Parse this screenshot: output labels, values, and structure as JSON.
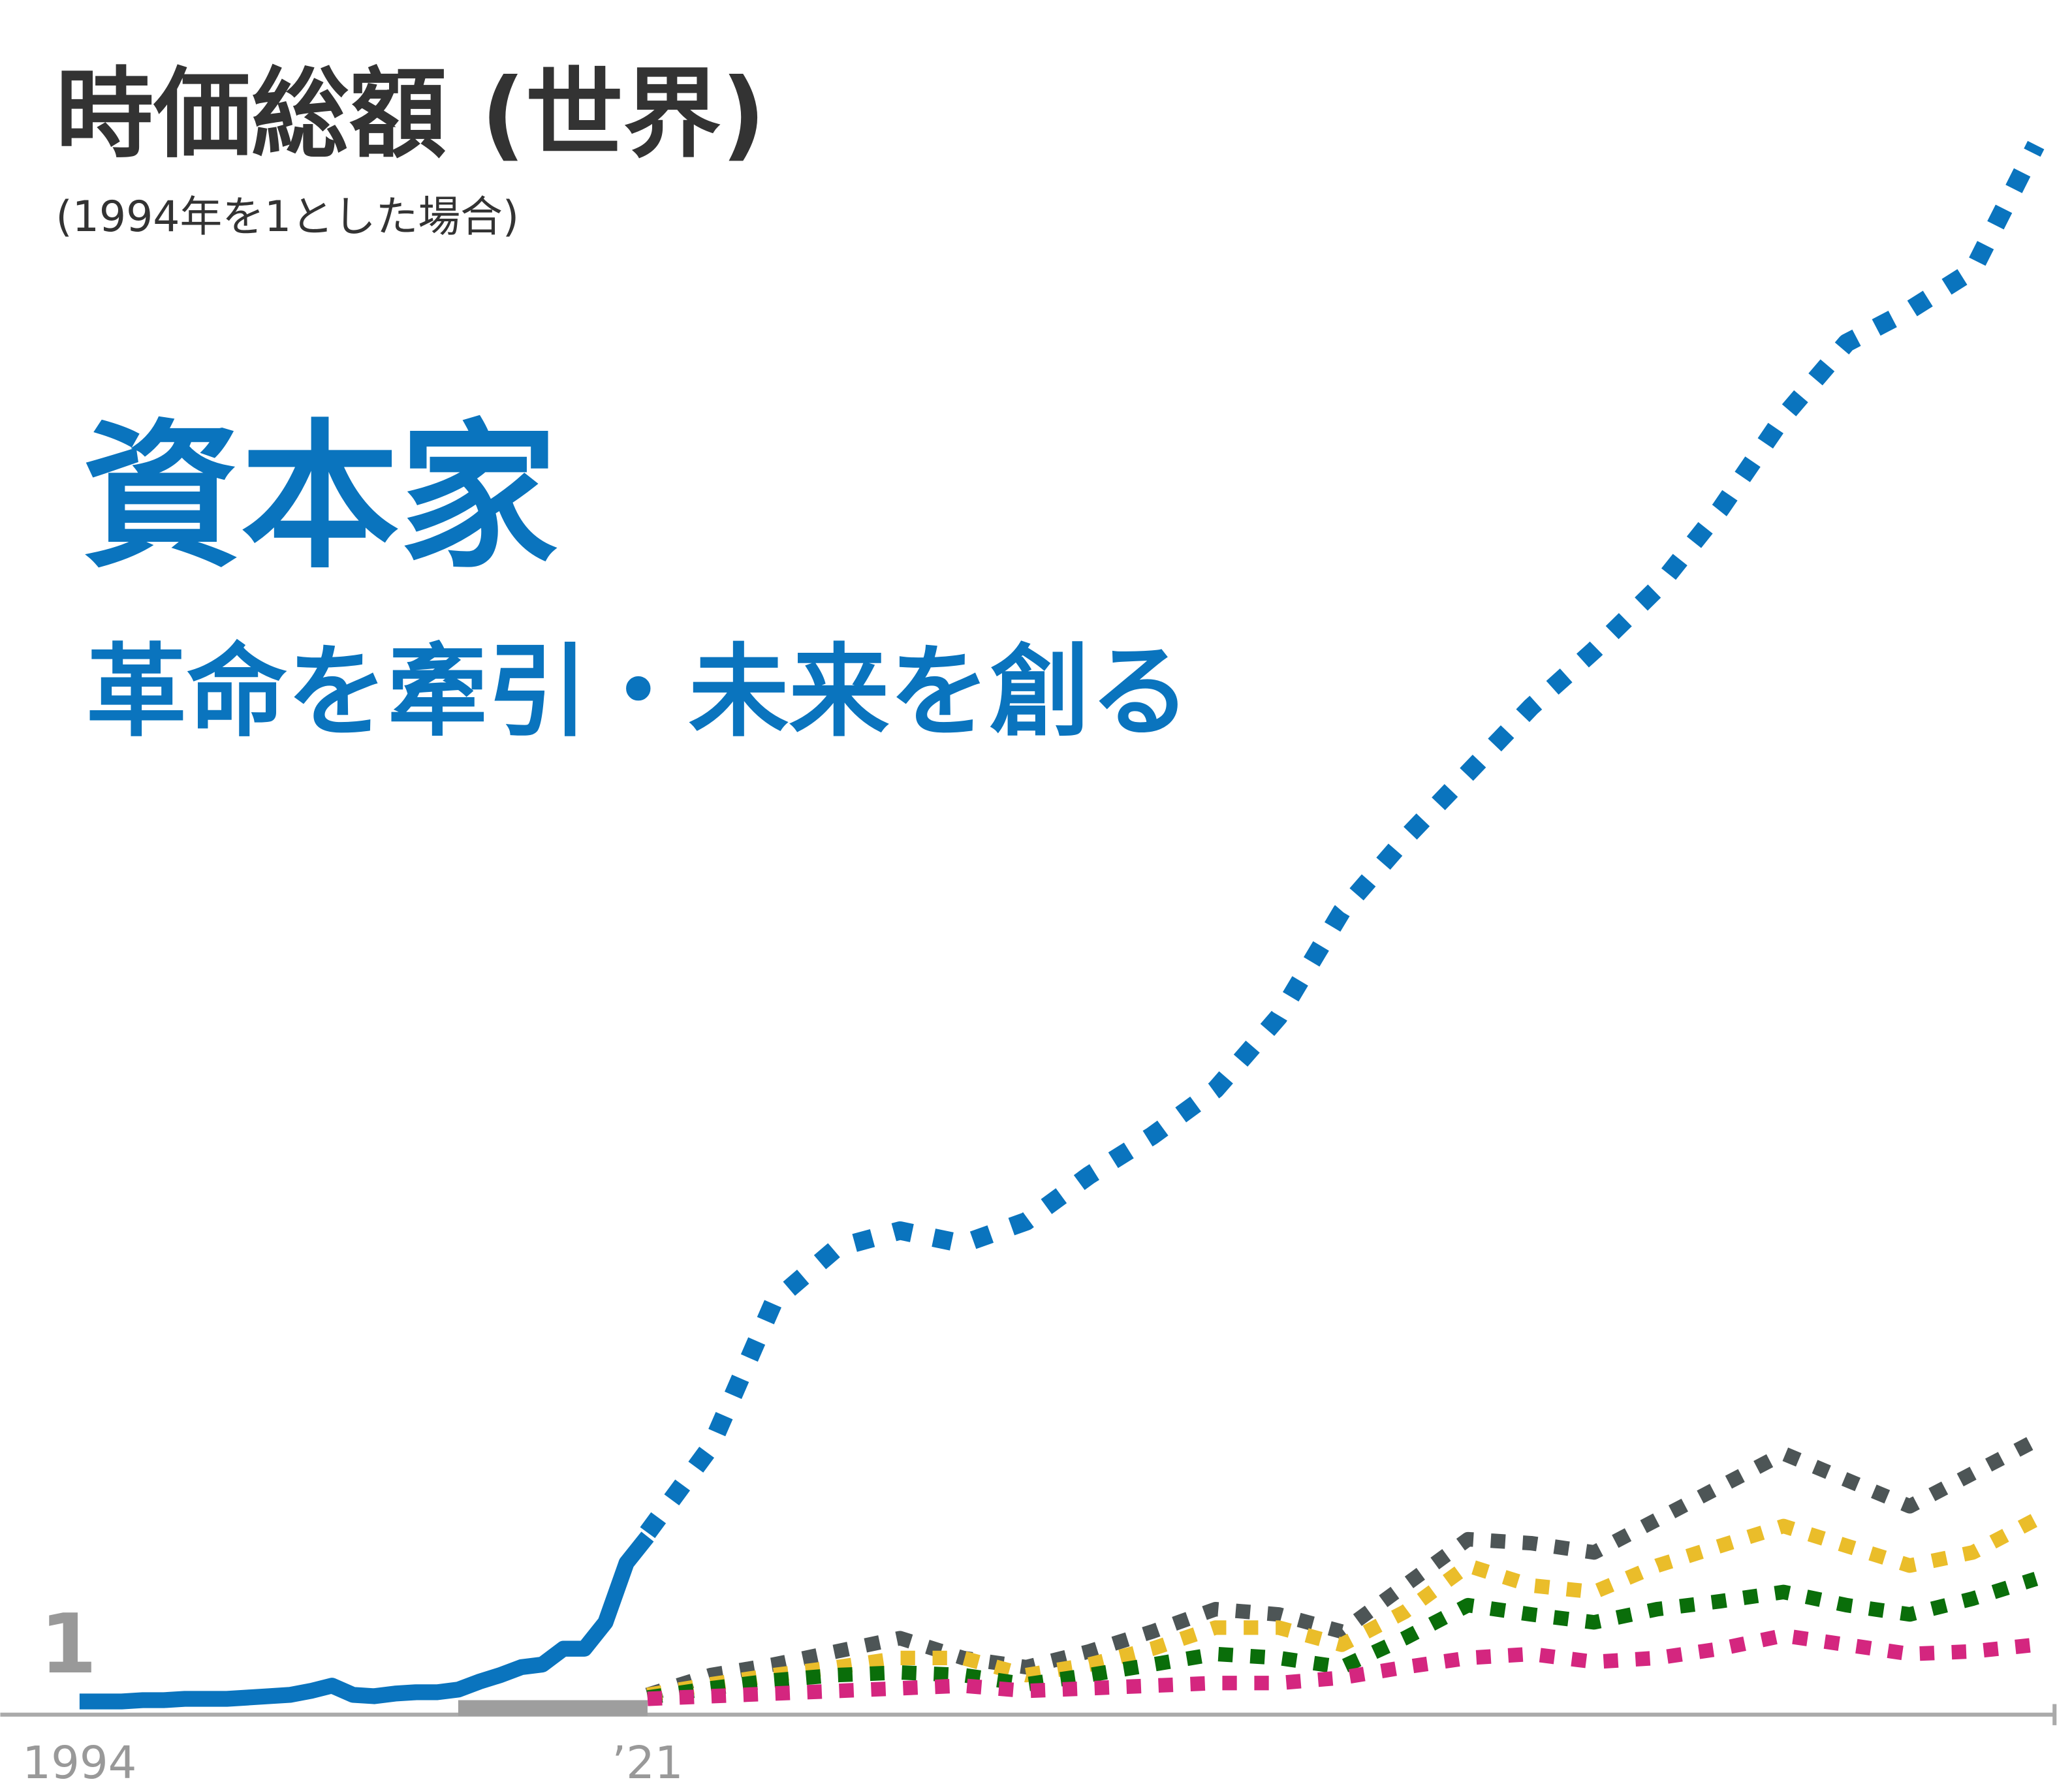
{
  "chart_data": {
    "type": "line",
    "title": "時価総額 (世界)",
    "subtitle": "(1994年を1とした場合)",
    "annotations": [
      "資本家",
      "革命を牽引・未来を創る"
    ],
    "x": [
      1994,
      1995,
      1996,
      1997,
      1998,
      1999,
      2000,
      2001,
      2002,
      2003,
      2004,
      2005,
      2006,
      2007,
      2008,
      2009,
      2010,
      2011,
      2012,
      2013,
      2014,
      2015,
      2016,
      2017,
      2018,
      2019,
      2020,
      2021,
      2024,
      2027,
      2030,
      2033,
      2036,
      2039,
      2042,
      2045,
      2048,
      2051,
      2054,
      2057,
      2060,
      2063,
      2066,
      2069,
      2072,
      2075,
      2078,
      2081,
      2084,
      2087
    ],
    "series": [
      {
        "color": "#9e9e9e",
        "dashed": false,
        "width": 12,
        "values": [
          null,
          null,
          null,
          null,
          null,
          null,
          null,
          null,
          null,
          null,
          null,
          null,
          null,
          null,
          null,
          null,
          null,
          null,
          0.5,
          0.5,
          0.5,
          0.5,
          0.5,
          0.5,
          0.5,
          0.5,
          0.5,
          0.5,
          null,
          null,
          null,
          null,
          null,
          null,
          null,
          null,
          null,
          null,
          null,
          null,
          null,
          null,
          null,
          null,
          null,
          null,
          null,
          null,
          null,
          null
        ]
      },
      {
        "color": "#4d5556",
        "dashed": true,
        "width": 11,
        "values": [
          null,
          null,
          null,
          null,
          null,
          null,
          null,
          null,
          null,
          null,
          null,
          null,
          null,
          null,
          null,
          null,
          null,
          null,
          null,
          null,
          null,
          null,
          null,
          null,
          null,
          null,
          null,
          1.5,
          3.0,
          3.8,
          4.8,
          5.8,
          4.3,
          3.6,
          4.8,
          6.3,
          8.0,
          7.6,
          6.3,
          9.8,
          13.3,
          13.0,
          12.3,
          14.8,
          17.3,
          19.8,
          17.8,
          15.8,
          18.3,
          20.8
        ]
      },
      {
        "color": "#eabd2a",
        "dashed": true,
        "width": 11,
        "values": [
          null,
          null,
          null,
          null,
          null,
          null,
          null,
          null,
          null,
          null,
          null,
          null,
          null,
          null,
          null,
          null,
          null,
          null,
          null,
          null,
          null,
          null,
          null,
          null,
          null,
          null,
          null,
          1.5,
          2.3,
          3.0,
          3.6,
          4.3,
          4.3,
          3.0,
          3.8,
          5.0,
          6.6,
          6.6,
          5.3,
          7.8,
          11.3,
          9.8,
          9.3,
          11.3,
          12.8,
          14.3,
          12.8,
          11.3,
          12.3,
          14.8
        ]
      },
      {
        "color": "#0a6e0a",
        "dashed": true,
        "width": 11,
        "values": [
          null,
          null,
          null,
          null,
          null,
          null,
          null,
          null,
          null,
          null,
          null,
          null,
          null,
          null,
          null,
          null,
          null,
          null,
          null,
          null,
          null,
          null,
          null,
          null,
          null,
          null,
          null,
          1.3,
          2.0,
          2.6,
          3.0,
          3.2,
          3.0,
          2.3,
          3.0,
          3.8,
          4.6,
          4.3,
          3.6,
          5.8,
          8.3,
          7.6,
          7.0,
          8.0,
          8.6,
          9.3,
          8.3,
          7.6,
          8.8,
          10.3
        ]
      },
      {
        "color": "#d4267f",
        "dashed": true,
        "width": 11,
        "values": [
          null,
          null,
          null,
          null,
          null,
          null,
          null,
          null,
          null,
          null,
          null,
          null,
          null,
          null,
          null,
          null,
          null,
          null,
          null,
          null,
          null,
          null,
          null,
          null,
          null,
          null,
          null,
          1.2,
          1.4,
          1.6,
          1.8,
          2.0,
          2.2,
          1.8,
          2.0,
          2.2,
          2.4,
          2.4,
          2.8,
          3.6,
          4.3,
          4.6,
          4.0,
          4.3,
          5.0,
          6.0,
          5.3,
          4.6,
          4.8,
          5.3
        ]
      },
      {
        "color": "#0a74be",
        "dashed": false,
        "width": 12,
        "values": [
          1.0,
          1.0,
          1.0,
          1.1,
          1.1,
          1.2,
          1.2,
          1.2,
          1.3,
          1.4,
          1.5,
          1.8,
          2.2,
          1.5,
          1.4,
          1.6,
          1.7,
          1.7,
          1.9,
          2.5,
          3.0,
          3.6,
          3.8,
          5.0,
          5.0,
          7.0,
          11.5,
          13.5,
          null,
          null,
          null,
          null,
          null,
          null,
          null,
          null,
          null,
          null,
          null,
          null,
          null,
          null,
          null,
          null,
          null,
          null,
          null,
          null,
          null,
          null
        ]
      },
      {
        "color": "#0a74be",
        "dashed": true,
        "width": 14,
        "values": [
          null,
          null,
          null,
          null,
          null,
          null,
          null,
          null,
          null,
          null,
          null,
          null,
          null,
          null,
          null,
          null,
          null,
          null,
          null,
          null,
          null,
          null,
          null,
          null,
          null,
          null,
          null,
          13.8,
          20.3,
          31.3,
          35.4,
          36.7,
          35.7,
          37.4,
          40.9,
          43.9,
          47.4,
          52.9,
          60.9,
          66.4,
          71.4,
          76.4,
          80.7,
          85.4,
          91.4,
          98.4,
          104,
          106.5,
          109.5,
          119
        ]
      }
    ],
    "xlim": [
      1994,
      2088.7
    ],
    "xticks": [
      1994,
      {
        "value": 2021,
        "label": "’21"
      }
    ],
    "ylim": [
      0,
      130
    ],
    "yticks": [
      1
    ]
  }
}
